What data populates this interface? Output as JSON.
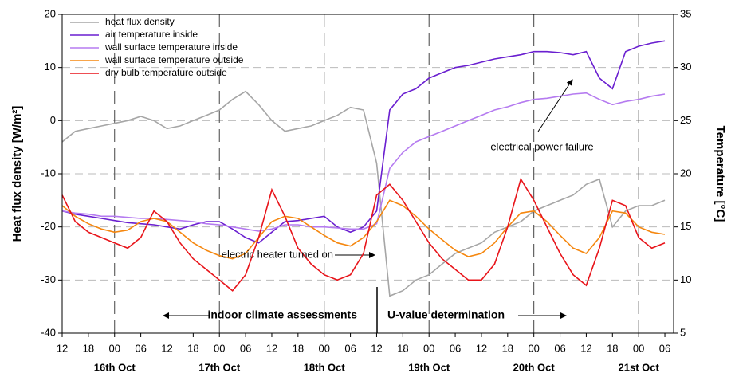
{
  "chart_data": {
    "type": "line",
    "x": [
      0,
      3,
      6,
      9,
      12,
      15,
      18,
      21,
      24,
      27,
      30,
      33,
      36,
      39,
      42,
      45,
      48,
      51,
      54,
      57,
      60,
      63,
      66,
      69,
      72,
      75,
      78,
      81,
      84,
      87,
      90,
      93,
      96,
      99,
      102,
      105,
      108,
      111,
      114,
      117,
      120,
      123,
      126,
      129,
      132,
      135,
      138
    ],
    "series": [
      {
        "name": "heat flux density",
        "color": "#a6a6a6",
        "axis": "y",
        "values": [
          -4,
          -2,
          -1.5,
          -1,
          -0.5,
          0,
          0.8,
          0,
          -1.5,
          -1,
          0,
          1,
          2,
          4,
          5.5,
          3,
          0,
          -2,
          -1.5,
          -1,
          0,
          1,
          2.5,
          2,
          -8,
          -33,
          -32,
          -30,
          -29,
          -27,
          -25,
          -24,
          -23,
          -21,
          -20,
          -19,
          -17,
          -16,
          -15,
          -14,
          -12,
          -11,
          -20,
          -17,
          -16,
          -16,
          -15
        ]
      },
      {
        "name": "air temperature inside",
        "color": "#6a1fd0",
        "axis": "y2",
        "values": [
          16.5,
          16.2,
          16,
          15.8,
          15.6,
          15.4,
          15.3,
          15.2,
          15,
          14.8,
          15.2,
          15.5,
          15.5,
          14.8,
          14,
          13.5,
          14.5,
          15.5,
          15.6,
          15.8,
          16,
          15,
          14.5,
          15,
          16.5,
          26,
          27.5,
          28,
          29,
          29.5,
          30,
          30.2,
          30.5,
          30.8,
          31,
          31.2,
          31.5,
          31.5,
          31.4,
          31.2,
          31.5,
          29,
          28,
          31.5,
          32,
          32.3,
          32.5
        ]
      },
      {
        "name": "wall surface temperature inside",
        "color": "#b57bf0",
        "axis": "y2",
        "values": [
          16.5,
          16.3,
          16.2,
          16,
          16,
          15.9,
          15.8,
          15.8,
          15.7,
          15.6,
          15.5,
          15.3,
          15.2,
          15,
          14.8,
          14.6,
          14.8,
          15.2,
          15.2,
          15,
          15,
          14.9,
          14.8,
          14.8,
          15.3,
          20.5,
          22,
          23,
          23.5,
          24,
          24.5,
          25,
          25.5,
          26,
          26.3,
          26.7,
          27,
          27.1,
          27.3,
          27.5,
          27.6,
          27,
          26.5,
          26.8,
          27,
          27.3,
          27.5
        ]
      },
      {
        "name": "wall surface temperature outside",
        "color": "#f5870f",
        "axis": "y2",
        "values": [
          17,
          16,
          15.3,
          14.8,
          14.5,
          14.7,
          15.5,
          15.8,
          15.5,
          14.5,
          13.5,
          12.8,
          12.3,
          12,
          12.5,
          14,
          15.5,
          16,
          15.8,
          15,
          14.2,
          13.5,
          13.2,
          14,
          15.5,
          17.5,
          17,
          16,
          14.8,
          13.8,
          12.8,
          12.2,
          12.5,
          13.5,
          15,
          16.3,
          16.5,
          15.5,
          14.2,
          13,
          12.5,
          14,
          16.5,
          16.3,
          15,
          14.5,
          14.3
        ]
      },
      {
        "name": "dry bulb temperature outside",
        "color": "#e8141a",
        "axis": "y2",
        "values": [
          18,
          15.5,
          14.5,
          14,
          13.5,
          13,
          14,
          16.5,
          15.5,
          13.5,
          12,
          11,
          10,
          9,
          10.5,
          14,
          18.5,
          16,
          13,
          11.5,
          10.5,
          10,
          10.5,
          12.5,
          18,
          19,
          17.5,
          15.5,
          13.5,
          12,
          11,
          10,
          10,
          11.5,
          15,
          19.5,
          17.5,
          15,
          12.5,
          10.5,
          9.5,
          13,
          17.5,
          17,
          14,
          13,
          13.5
        ]
      }
    ],
    "xlim": [
      0,
      140
    ],
    "xticks": [
      {
        "value": 0,
        "label": "12"
      },
      {
        "value": 6,
        "label": "18"
      },
      {
        "value": 12,
        "label": "00"
      },
      {
        "value": 18,
        "label": "06"
      },
      {
        "value": 24,
        "label": "12"
      },
      {
        "value": 30,
        "label": "18"
      },
      {
        "value": 36,
        "label": "00"
      },
      {
        "value": 42,
        "label": "06"
      },
      {
        "value": 48,
        "label": "12"
      },
      {
        "value": 54,
        "label": "18"
      },
      {
        "value": 60,
        "label": "00"
      },
      {
        "value": 66,
        "label": "06"
      },
      {
        "value": 72,
        "label": "12"
      },
      {
        "value": 78,
        "label": "18"
      },
      {
        "value": 84,
        "label": "00"
      },
      {
        "value": 90,
        "label": "06"
      },
      {
        "value": 96,
        "label": "12"
      },
      {
        "value": 102,
        "label": "18"
      },
      {
        "value": 108,
        "label": "00"
      },
      {
        "value": 114,
        "label": "06"
      },
      {
        "value": 120,
        "label": "12"
      },
      {
        "value": 126,
        "label": "18"
      },
      {
        "value": 132,
        "label": "00"
      },
      {
        "value": 138,
        "label": "06"
      }
    ],
    "date_labels": [
      {
        "value": 12,
        "label": "16th Oct"
      },
      {
        "value": 36,
        "label": "17th Oct"
      },
      {
        "value": 60,
        "label": "18th Oct"
      },
      {
        "value": 84,
        "label": "19th Oct"
      },
      {
        "value": 108,
        "label": "20th Oct"
      },
      {
        "value": 132,
        "label": "21st Oct"
      }
    ],
    "ylabel": "Heat flux density [W/m²]",
    "y2label": "Temperature [°C]",
    "ylim": [
      -40,
      20
    ],
    "yticks": [
      -40,
      -30,
      -20,
      -10,
      0,
      10,
      20
    ],
    "y2lim": [
      5,
      35
    ],
    "y2ticks": [
      5,
      10,
      15,
      20,
      25,
      30,
      35
    ],
    "grid": true,
    "legend": "top-left",
    "annotations": [
      {
        "text": "electric heater turned on"
      },
      {
        "text": "electrical power failure"
      },
      {
        "text": "indoor climate assessments"
      },
      {
        "text": "U-value determination"
      }
    ]
  }
}
